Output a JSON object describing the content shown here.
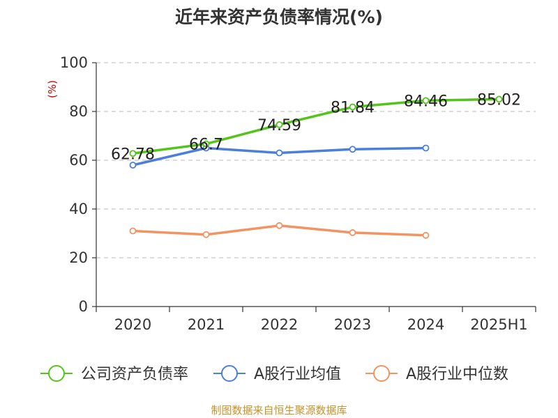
{
  "chart_data": {
    "type": "line",
    "title": "近年来资产负债率情况(%)",
    "ylabel": "(%)",
    "categories": [
      "2020",
      "2021",
      "2022",
      "2023",
      "2024",
      "2025H1"
    ],
    "ylim": [
      0,
      100
    ],
    "yticks": [
      0,
      20,
      40,
      60,
      80,
      100
    ],
    "grid": true,
    "legend_position": "bottom",
    "series": [
      {
        "name": "公司资产负债率",
        "color": "#52c41a",
        "values": [
          62.78,
          66.7,
          74.59,
          81.84,
          84.46,
          85.02
        ],
        "labels": [
          "62.78",
          "66.7",
          "74.59",
          "81.84",
          "84.46",
          "85.02"
        ]
      },
      {
        "name": "A股行业均值",
        "color": "#4a7fdc",
        "values": [
          58.0,
          65.0,
          63.0,
          64.5,
          65.0,
          null
        ]
      },
      {
        "name": "A股行业中位数",
        "color": "#f29361",
        "values": [
          31.0,
          29.5,
          33.2,
          30.3,
          29.2,
          null
        ]
      }
    ]
  },
  "source_text": "制图数据来自恒生聚源数据库"
}
